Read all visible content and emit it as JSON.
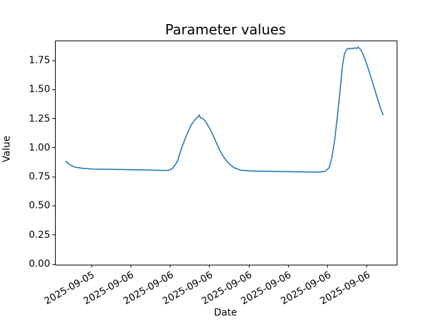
{
  "window": {
    "background": "#ffffff"
  },
  "colors": {
    "line": "#1f77b4",
    "text": "#000000",
    "spine": "#000000"
  },
  "chart_data": {
    "type": "line",
    "title": "Parameter values",
    "xlabel": "Date",
    "ylabel": "Value",
    "grid": false,
    "legend": "none",
    "ylim": [
      0,
      1.922
    ],
    "y_ticks": [
      0,
      0.25,
      0.5,
      0.75,
      1.0,
      1.25,
      1.5,
      1.75
    ],
    "y_tick_labels": [
      "0.00",
      "0.25",
      "0.50",
      "0.75",
      "1.00",
      "1.25",
      "1.50",
      "1.75"
    ],
    "x_ticks": [
      {
        "pos": 0.107,
        "label": "2025-09-05"
      },
      {
        "pos": 0.222,
        "label": "2025-09-06"
      },
      {
        "pos": 0.338,
        "label": "2025-09-06"
      },
      {
        "pos": 0.453,
        "label": "2025-09-06"
      },
      {
        "pos": 0.569,
        "label": "2025-09-06"
      },
      {
        "pos": 0.684,
        "label": "2025-09-06"
      },
      {
        "pos": 0.8,
        "label": "2025-09-06"
      },
      {
        "pos": 0.915,
        "label": "2025-09-06"
      }
    ],
    "series": [
      {
        "name": "Value",
        "color": "#1f77b4",
        "x_frac": [
          0.03,
          0.04,
          0.056,
          0.077,
          0.111,
          0.161,
          0.212,
          0.262,
          0.302,
          0.329,
          0.343,
          0.357,
          0.369,
          0.383,
          0.397,
          0.409,
          0.417,
          0.421,
          0.425,
          0.431,
          0.439,
          0.454,
          0.468,
          0.48,
          0.494,
          0.508,
          0.524,
          0.544,
          0.575,
          0.615,
          0.655,
          0.696,
          0.736,
          0.77,
          0.79,
          0.802,
          0.81,
          0.819,
          0.827,
          0.835,
          0.841,
          0.847,
          0.853,
          0.859,
          0.863,
          0.869,
          0.873,
          0.877,
          0.883,
          0.887,
          0.895,
          0.903,
          0.913,
          0.927,
          0.941,
          0.954,
          0.96
        ],
        "values": [
          0.89,
          0.862,
          0.84,
          0.83,
          0.822,
          0.82,
          0.818,
          0.815,
          0.812,
          0.81,
          0.828,
          0.89,
          1.0,
          1.11,
          1.2,
          1.25,
          1.27,
          1.288,
          1.262,
          1.258,
          1.235,
          1.16,
          1.07,
          0.99,
          0.92,
          0.868,
          0.833,
          0.812,
          0.806,
          0.803,
          0.802,
          0.8,
          0.797,
          0.796,
          0.803,
          0.834,
          0.922,
          1.09,
          1.3,
          1.53,
          1.71,
          1.815,
          1.85,
          1.862,
          1.855,
          1.862,
          1.858,
          1.866,
          1.86,
          1.872,
          1.848,
          1.798,
          1.72,
          1.59,
          1.455,
          1.335,
          1.29
        ]
      }
    ]
  }
}
